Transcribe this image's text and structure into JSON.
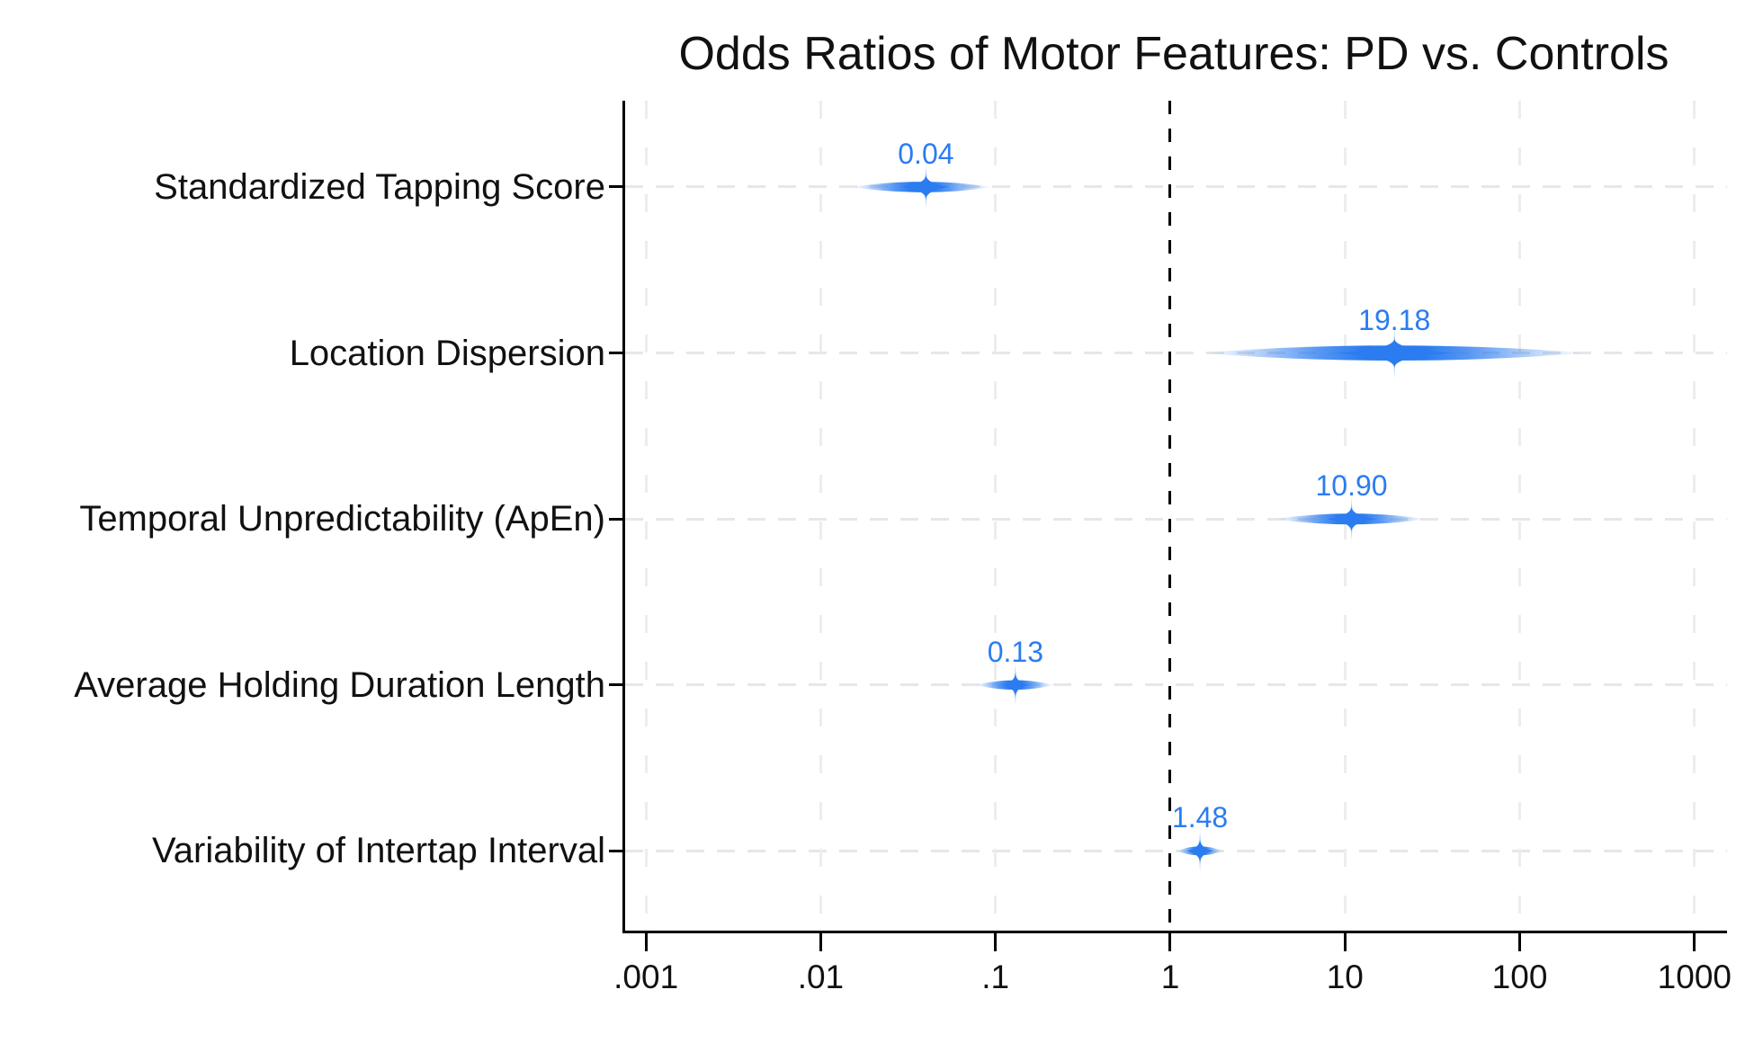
{
  "chart_data": {
    "type": "scatter",
    "subtype": "forest-plot-odds-ratios",
    "title": "Odds Ratios of Motor Features: PD vs. Controls",
    "xlabel": "",
    "ylabel": "",
    "x_scale": "log10",
    "xlim": [
      0.00076,
      1535
    ],
    "reference_line_x": 1,
    "grid": "dashed-light-gray",
    "legend": "none",
    "x_ticks": [
      {
        "value": 0.001,
        "label": ".001"
      },
      {
        "value": 0.01,
        "label": ".01"
      },
      {
        "value": 0.1,
        "label": ".1"
      },
      {
        "value": 1,
        "label": "1"
      },
      {
        "value": 10,
        "label": "10"
      },
      {
        "value": 100,
        "label": "100"
      },
      {
        "value": 1000,
        "label": "1000"
      }
    ],
    "points": [
      {
        "label": "Standardized Tapping Score",
        "or": 0.04,
        "or_label": "0.04",
        "ci_low": 0.015,
        "ci_high": 0.095
      },
      {
        "label": "Location Dispersion",
        "or": 19.18,
        "or_label": "19.18",
        "ci_low": 1.5,
        "ci_high": 240
      },
      {
        "label": "Temporal Unpredictability (ApEn)",
        "or": 10.9,
        "or_label": "10.90",
        "ci_low": 4.0,
        "ci_high": 29
      },
      {
        "label": "Average Holding Duration Length",
        "or": 0.13,
        "or_label": "0.13",
        "ci_low": 0.077,
        "ci_high": 0.215
      },
      {
        "label": "Variability of Intertap Interval",
        "or": 1.48,
        "or_label": "1.48",
        "ci_low": 1.09,
        "ci_high": 2.0
      }
    ],
    "colors": {
      "accent": "#2b7cf0",
      "accent_light": "#aecdf9",
      "grid": "#e7e7e7",
      "axis": "#000000",
      "reference": "#000000",
      "background": "#ffffff",
      "title_text": "#111111"
    }
  }
}
